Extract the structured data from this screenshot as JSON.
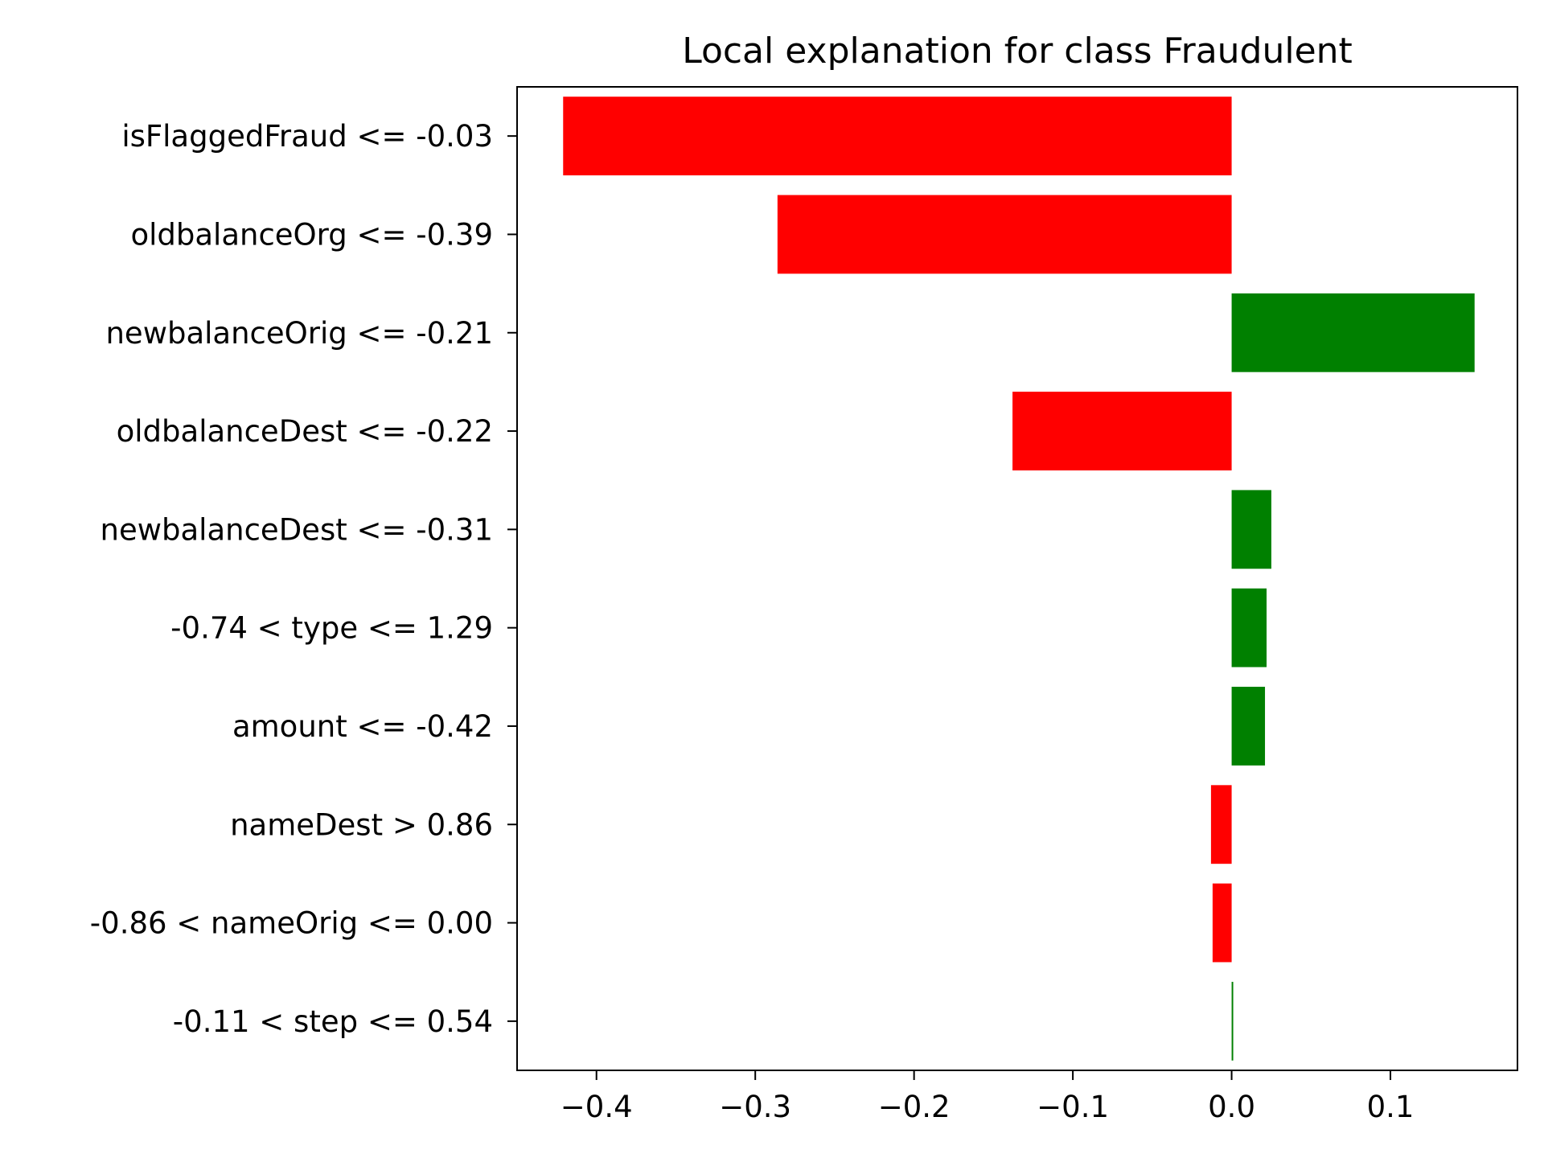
{
  "chart_data": {
    "type": "bar",
    "orientation": "horizontal",
    "title": "Local explanation for class Fraudulent",
    "xlabel": "",
    "ylabel": "",
    "categories": [
      "isFlaggedFraud <= -0.03",
      "oldbalanceOrg <= -0.39",
      "newbalanceOrig <= -0.21",
      "oldbalanceDest <= -0.22",
      "newbalanceDest <= -0.31",
      "-0.74 < type <= 1.29",
      "amount <= -0.42",
      "nameDest > 0.86",
      "-0.86 < nameOrig <= 0.00",
      "-0.11 < step <= 0.54"
    ],
    "values": [
      -0.421,
      -0.286,
      0.153,
      -0.138,
      0.025,
      0.022,
      0.021,
      -0.013,
      -0.012,
      0.001
    ],
    "xlim": [
      -0.45,
      0.18
    ],
    "xticks": [
      -0.4,
      -0.3,
      -0.2,
      -0.1,
      0.0,
      0.1
    ],
    "xtick_labels": [
      "−0.4",
      "−0.3",
      "−0.2",
      "−0.1",
      "0.0",
      "0.1"
    ],
    "grid": false,
    "legend": "none",
    "colors": {
      "positive": "#008000",
      "negative": "#ff0000",
      "axis": "#000000"
    }
  }
}
